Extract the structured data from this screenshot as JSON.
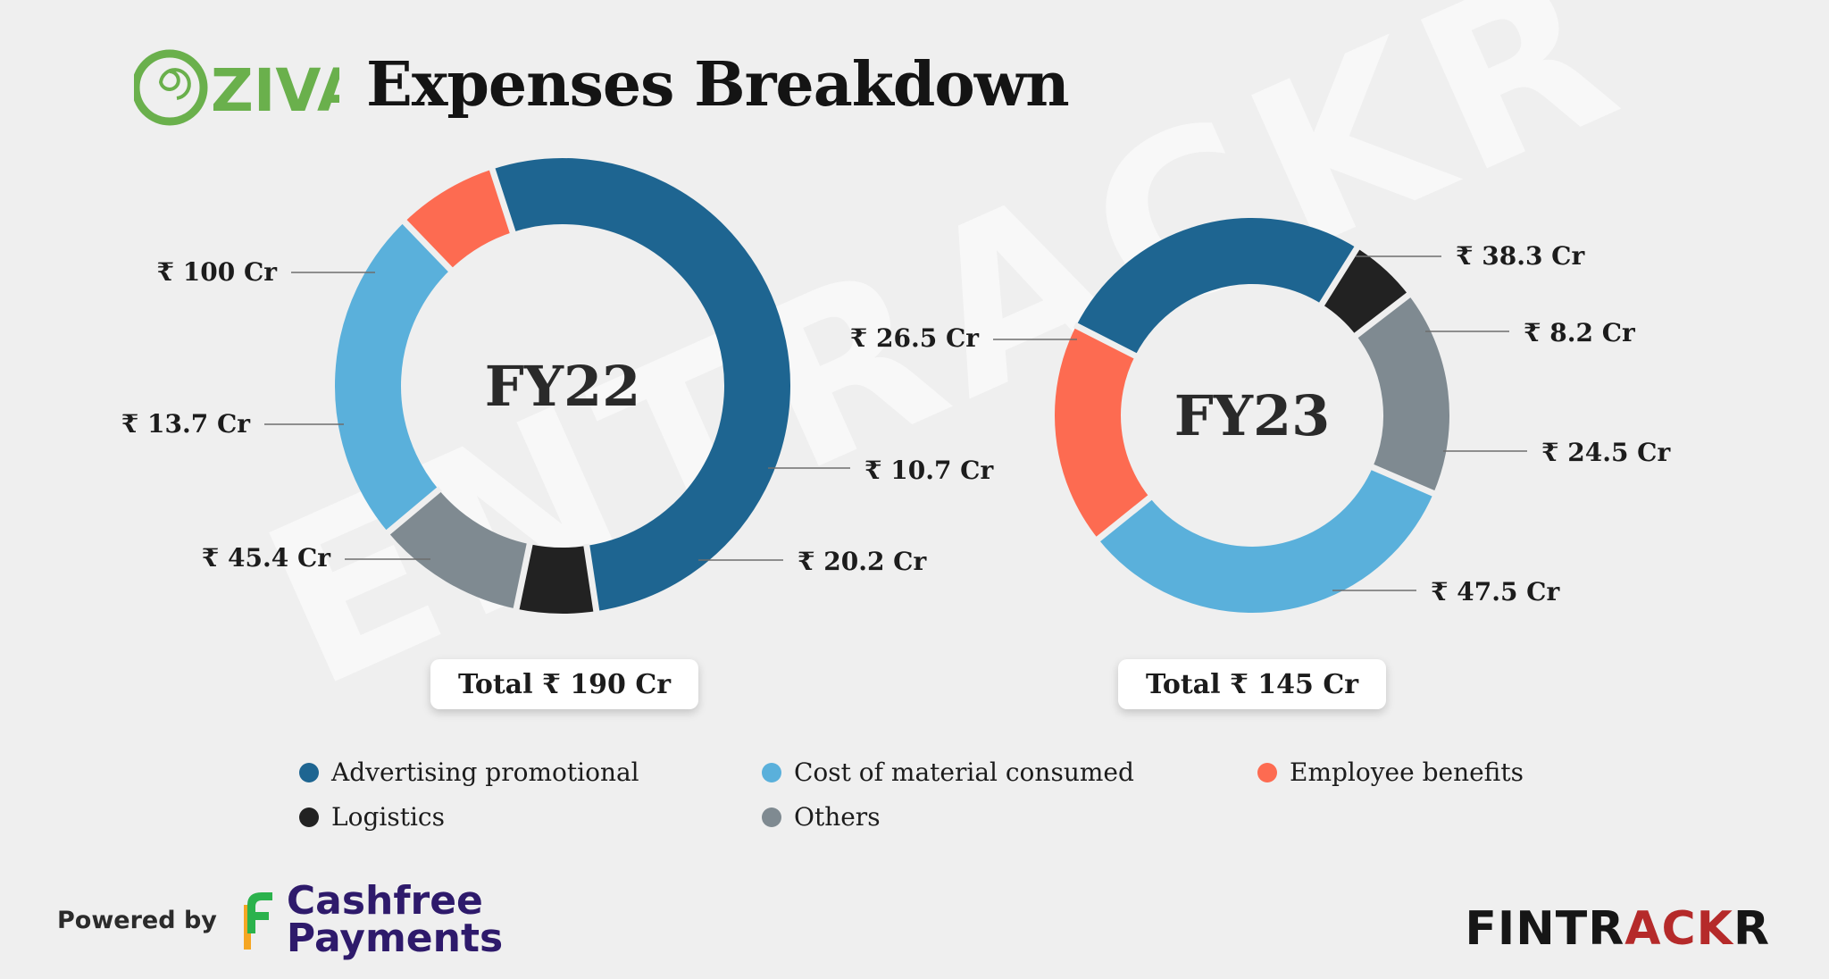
{
  "header": {
    "brand_name": "OZiva",
    "title": "Expenses Breakdown"
  },
  "chart_data": [
    {
      "type": "pie",
      "subtype": "donut",
      "center_label": "FY22",
      "unit": "₹ Cr",
      "total_label": "Total ₹ 190 Cr",
      "slices": [
        {
          "name": "Advertising promotional",
          "value": 100,
          "label": "₹ 100 Cr",
          "color": "#1e6591"
        },
        {
          "name": "Logistics",
          "value": 10.7,
          "label": "₹ 10.7 Cr",
          "color": "#222222"
        },
        {
          "name": "Others",
          "value": 20.2,
          "label": "₹ 20.2 Cr",
          "color": "#7f8a91"
        },
        {
          "name": "Cost of material consumed",
          "value": 45.4,
          "label": "₹ 45.4 Cr",
          "color": "#5ab0db"
        },
        {
          "name": "Employee benefits",
          "value": 13.7,
          "label": "₹ 13.7 Cr",
          "color": "#fd6b51"
        }
      ]
    },
    {
      "type": "pie",
      "subtype": "donut",
      "center_label": "FY23",
      "unit": "₹ Cr",
      "total_label": "Total ₹ 145 Cr",
      "slices": [
        {
          "name": "Advertising promotional",
          "value": 38.3,
          "label": "₹ 38.3 Cr",
          "color": "#1e6591"
        },
        {
          "name": "Logistics",
          "value": 8.2,
          "label": "₹ 8.2 Cr",
          "color": "#222222"
        },
        {
          "name": "Others",
          "value": 24.5,
          "label": "₹ 24.5 Cr",
          "color": "#7f8a91"
        },
        {
          "name": "Cost of material consumed",
          "value": 47.5,
          "label": "₹ 47.5 Cr",
          "color": "#5ab0db"
        },
        {
          "name": "Employee benefits",
          "value": 26.5,
          "label": "₹ 26.5 Cr",
          "color": "#fd6b51"
        }
      ]
    }
  ],
  "legend": [
    {
      "label": "Advertising promotional",
      "color": "#1e6591"
    },
    {
      "label": "Cost of material consumed",
      "color": "#5ab0db"
    },
    {
      "label": "Employee benefits",
      "color": "#fd6b51"
    },
    {
      "label": "Logistics",
      "color": "#222222"
    },
    {
      "label": "Others",
      "color": "#7f8a91"
    }
  ],
  "footer": {
    "powered_by": "Powered by",
    "sponsor_line1": "Cashfree",
    "sponsor_line2": "Payments",
    "watermark": "ENTRACKR",
    "brand_left": "FINTR",
    "brand_accent": "ACK",
    "brand_right": "R"
  }
}
